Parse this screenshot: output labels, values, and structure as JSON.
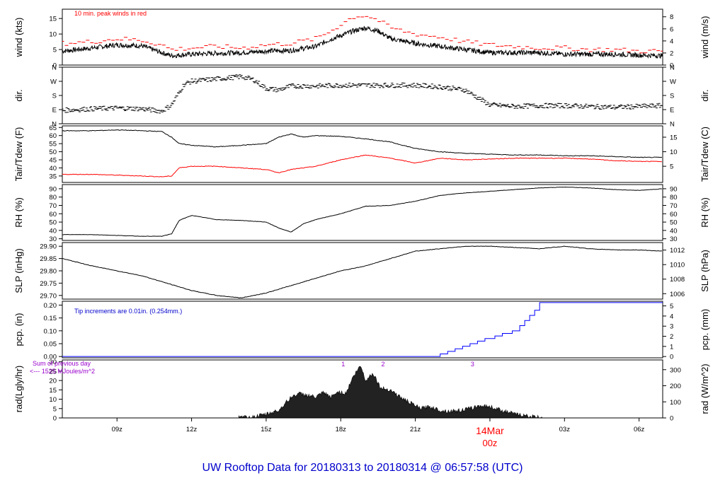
{
  "title": "UW Rooftop Data for 20180313  to  20180314 @ 06:57:58  (UTC)",
  "colors": {
    "title": "#0000cc",
    "annotation_red": "#ff0000",
    "annotation_blue": "#0000cc",
    "annotation_purple": "#9900cc",
    "dew": "#ff0000",
    "precip": "#0000ff"
  },
  "x_axis": {
    "tick_labels": [
      "09z",
      "12z",
      "15z",
      "18z",
      "21z",
      "03z",
      "06z"
    ],
    "tick_hours": [
      9,
      12,
      15,
      18,
      21,
      27,
      30
    ],
    "day_label": "14Mar",
    "day_hour_label": "00z",
    "range_hours": [
      6.8,
      30.95
    ]
  },
  "chart_data": [
    {
      "type": "line",
      "panel": "wind",
      "ylabel_left": "wind (kts)",
      "ylabel_right": "wind (m/s)",
      "yticks_left": [
        "0",
        "5",
        "10",
        "15"
      ],
      "yticks_right": [
        "0",
        "2",
        "4",
        "6",
        "8"
      ],
      "ylim": [
        0,
        18
      ],
      "annotation": "10 min. peak winds in red",
      "series": [
        {
          "name": "wind",
          "x": [
            6.8,
            8,
            9,
            10,
            10.8,
            11.2,
            12,
            13,
            14,
            15,
            16,
            17,
            17.5,
            18,
            18.5,
            19,
            19.5,
            20,
            21,
            22,
            23,
            24,
            25,
            26,
            27,
            28,
            29,
            30,
            30.95
          ],
          "y": [
            4.5,
            5.5,
            6.5,
            6.2,
            4,
            3,
            3.5,
            3.8,
            4,
            4.5,
            4.7,
            6,
            8,
            9.5,
            11,
            12,
            11,
            8.5,
            7,
            6,
            5,
            4,
            4,
            4,
            3.5,
            3.5,
            3.5,
            3.2,
            3
          ]
        },
        {
          "name": "peak",
          "x": [
            6.8,
            8,
            9,
            10,
            10.8,
            11.2,
            12,
            13,
            14,
            15,
            16,
            17,
            17.5,
            18,
            18.5,
            19,
            19.5,
            20,
            21,
            22,
            23,
            24,
            25,
            26,
            27,
            28,
            29,
            30,
            30.95
          ],
          "y": [
            7,
            7.5,
            8.5,
            8,
            6.5,
            5,
            5.5,
            6,
            5.5,
            6.5,
            7,
            8.5,
            10.5,
            13,
            15.5,
            16,
            14.5,
            12,
            10,
            9,
            7.5,
            6.5,
            6,
            5.5,
            5.5,
            5,
            5,
            4.5,
            4.5
          ]
        }
      ]
    },
    {
      "type": "scatter",
      "panel": "direction",
      "ylabel_left": "dir.",
      "ylabel_right": "dir.",
      "yticks_left": [
        "N",
        "E",
        "S",
        "W",
        "N"
      ],
      "yticks_right": [
        "N",
        "E",
        "S",
        "W",
        "N"
      ],
      "ylim": [
        0,
        360
      ],
      "series": [
        {
          "name": "direction",
          "x": [
            6.8,
            8,
            9,
            10,
            10.8,
            11.2,
            11.7,
            12,
            13,
            14,
            14.5,
            15,
            15.5,
            16,
            17,
            18,
            19,
            20,
            21,
            22,
            23,
            24,
            25,
            26,
            27,
            28,
            29,
            30,
            30.95
          ],
          "y": [
            85,
            95,
            100,
            95,
            80,
            120,
            250,
            270,
            285,
            300,
            280,
            225,
            215,
            240,
            240,
            245,
            245,
            245,
            245,
            235,
            215,
            120,
            110,
            115,
            115,
            110,
            105,
            110,
            115
          ]
        }
      ]
    },
    {
      "type": "line",
      "panel": "temperature",
      "ylabel_left": "Tair/Tdew (F)",
      "ylabel_right": "Tair/Tdew (C)",
      "yticks_left": [
        "35",
        "40",
        "45",
        "50",
        "55",
        "60",
        "65"
      ],
      "yticks_right": [
        "5",
        "10",
        "15"
      ],
      "ylim": [
        31,
        66
      ],
      "series": [
        {
          "name": "Tair",
          "x": [
            6.8,
            8,
            9,
            10,
            10.8,
            11.2,
            11.5,
            12,
            13,
            14,
            15,
            15.5,
            16,
            16.5,
            17,
            18,
            19,
            20,
            21,
            22,
            23,
            24,
            25,
            26,
            27,
            28,
            29,
            30,
            30.95
          ],
          "y": [
            63,
            63,
            63.5,
            63,
            62.5,
            59,
            55,
            54,
            53,
            54,
            55,
            59,
            61,
            59,
            60,
            59.5,
            58,
            56,
            52,
            50,
            49,
            48.5,
            48,
            48,
            47.5,
            47.5,
            47,
            46.5,
            46.5
          ]
        },
        {
          "name": "Tdew",
          "x": [
            6.8,
            8,
            9,
            10,
            10.8,
            11.2,
            11.5,
            12,
            13,
            14,
            15,
            15.5,
            16,
            16.5,
            17,
            18,
            19,
            20,
            21,
            22,
            23,
            24,
            25,
            26,
            27,
            28,
            29,
            30,
            30.95
          ],
          "y": [
            36,
            36,
            35.5,
            35,
            34.5,
            35,
            40,
            41,
            41,
            40,
            39,
            37,
            39,
            40,
            41,
            45,
            48,
            46,
            43,
            46,
            45,
            45.5,
            46,
            46,
            46,
            45.5,
            44.5,
            44,
            44
          ]
        }
      ]
    },
    {
      "type": "line",
      "panel": "humidity",
      "ylabel_left": "RH (%)",
      "ylabel_right": "RH (%)",
      "yticks_left": [
        "30",
        "40",
        "50",
        "60",
        "70",
        "80",
        "90"
      ],
      "yticks_right": [
        "30",
        "40",
        "50",
        "60",
        "70",
        "80",
        "90"
      ],
      "ylim": [
        28,
        95
      ],
      "series": [
        {
          "name": "RH",
          "x": [
            6.8,
            8,
            9,
            10,
            10.8,
            11.2,
            11.5,
            12,
            13,
            14,
            15,
            15.5,
            16,
            16.5,
            17,
            18,
            19,
            20,
            21,
            22,
            23,
            24,
            25,
            26,
            27,
            28,
            29,
            30,
            30.95
          ],
          "y": [
            35,
            35,
            34,
            33,
            33,
            36,
            52,
            58,
            53,
            52,
            50,
            43,
            38,
            48,
            53,
            60,
            69,
            70,
            75,
            82,
            85,
            87,
            89,
            91,
            92,
            91,
            89,
            88,
            90
          ]
        }
      ]
    },
    {
      "type": "line",
      "panel": "pressure",
      "ylabel_left": "SLP (inHg)",
      "ylabel_right": "SLP (hPa)",
      "yticks_left": [
        "29.70",
        "29.75",
        "29.80",
        "29.85",
        "29.90"
      ],
      "yticks_right": [
        "1006",
        "1008",
        "1010",
        "1012"
      ],
      "ylim": [
        29.685,
        29.915
      ],
      "series": [
        {
          "name": "SLP",
          "x": [
            6.8,
            8,
            9,
            10,
            11,
            12,
            13,
            14,
            15,
            16,
            17,
            18,
            19,
            20,
            21,
            22,
            23,
            24,
            25,
            26,
            27,
            28,
            29,
            30,
            30.95
          ],
          "y": [
            29.85,
            29.82,
            29.8,
            29.78,
            29.75,
            29.72,
            29.7,
            29.69,
            29.71,
            29.74,
            29.77,
            29.8,
            29.82,
            29.85,
            29.88,
            29.89,
            29.9,
            29.9,
            29.895,
            29.89,
            29.9,
            29.89,
            29.885,
            29.885,
            29.88
          ]
        }
      ]
    },
    {
      "type": "line",
      "panel": "precipitation",
      "ylabel_left": "pcp. (in)",
      "ylabel_right": "pcp. (mm)",
      "yticks_left": [
        "0.00",
        "0.05",
        "0.10",
        "0.15",
        "0.20"
      ],
      "yticks_right": [
        "0",
        "1",
        "2",
        "3",
        "4",
        "5"
      ],
      "ylim": [
        -0.005,
        0.215
      ],
      "annotation": "Tip increments are 0.01in. (0.254mm.)",
      "series": [
        {
          "name": "accumulated precipitation",
          "x": [
            6.8,
            21.7,
            22,
            22.3,
            22.6,
            22.9,
            23.2,
            23.5,
            23.8,
            24.2,
            24.5,
            24.9,
            25.2,
            25.4,
            25.6,
            25.8,
            26,
            30.95
          ],
          "y": [
            0,
            0,
            0.01,
            0.02,
            0.03,
            0.04,
            0.05,
            0.06,
            0.07,
            0.08,
            0.09,
            0.1,
            0.12,
            0.14,
            0.16,
            0.18,
            0.21,
            0.21
          ]
        }
      ]
    },
    {
      "type": "area",
      "panel": "radiation",
      "ylabel_left": "rad(Lgly/hr)",
      "ylabel_right": "rad (W/m^2)",
      "yticks_left": [
        "0",
        "5",
        "10",
        "15",
        "20",
        "25",
        "30"
      ],
      "yticks_right": [
        "0",
        "100",
        "200",
        "300"
      ],
      "ylim": [
        0,
        31
      ],
      "annotations": [
        "Sum of previous day",
        "<--- 1525 MJoules/m^2"
      ],
      "markers": [
        "1",
        "2",
        "3"
      ],
      "marker_hours": [
        18.1,
        19.7,
        23.3
      ],
      "series": [
        {
          "name": "solar radiation",
          "x": [
            13.9,
            14.5,
            15,
            15.5,
            16,
            16.3,
            16.7,
            17,
            17.3,
            17.6,
            17.9,
            18.2,
            18.5,
            18.8,
            19,
            19.3,
            19.6,
            20,
            20.4,
            20.8,
            21.2,
            21.6,
            22,
            22.4,
            22.8,
            23.2,
            23.6,
            24,
            24.5,
            25,
            25.5,
            26,
            26.3
          ],
          "y": [
            0.2,
            0.5,
            2,
            4,
            11,
            13,
            12,
            11,
            13.5,
            11,
            14,
            13,
            22,
            28,
            20,
            24,
            16,
            15,
            11,
            8,
            5,
            6,
            4,
            3.5,
            4,
            5,
            6.5,
            6,
            4,
            2,
            1,
            0.3,
            0
          ]
        }
      ]
    }
  ]
}
